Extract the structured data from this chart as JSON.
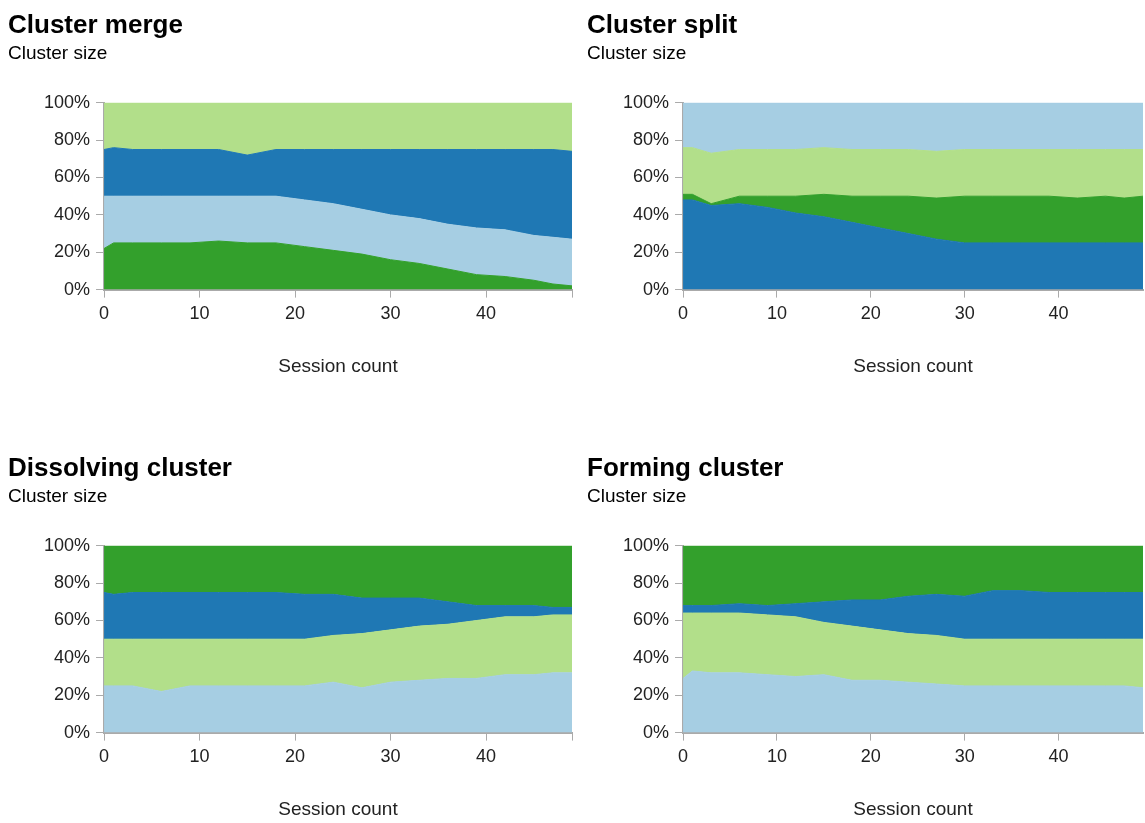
{
  "chart_data": [
    {
      "type": "area",
      "title": "Cluster merge",
      "ylabel": "Cluster size",
      "xlabel": "Session count",
      "stacked": true,
      "xlim": [
        0,
        49
      ],
      "xticks": [
        0,
        10,
        20,
        30,
        40,
        {
          "value": 49,
          "label": null
        }
      ],
      "ylim": [
        0,
        100
      ],
      "yticks": [
        {
          "value": 0,
          "label": "0%"
        },
        {
          "value": 20,
          "label": "20%"
        },
        {
          "value": 40,
          "label": "40%"
        },
        {
          "value": 60,
          "label": "60%"
        },
        {
          "value": 80,
          "label": "80%"
        },
        {
          "value": 100,
          "label": "100%"
        }
      ],
      "x": [
        0,
        1,
        3,
        6,
        9,
        12,
        15,
        18,
        21,
        24,
        27,
        30,
        33,
        36,
        39,
        42,
        45,
        47,
        49
      ],
      "series": [
        {
          "color": "#33a02c",
          "values": [
            22,
            25,
            25,
            25,
            25,
            26,
            25,
            25,
            23,
            21,
            19,
            16,
            14,
            11,
            8,
            7,
            5,
            3,
            2
          ]
        },
        {
          "color": "#a6cee3",
          "values": [
            28,
            25,
            25,
            25,
            25,
            24,
            25,
            25,
            25,
            25,
            24,
            24,
            24,
            24,
            25,
            25,
            24,
            25,
            25
          ]
        },
        {
          "color": "#1f78b4",
          "values": [
            25,
            26,
            25,
            25,
            25,
            25,
            22,
            25,
            27,
            29,
            32,
            35,
            37,
            40,
            42,
            43,
            46,
            47,
            47
          ]
        },
        {
          "color": "#b2df8a",
          "values": [
            25,
            24,
            25,
            25,
            25,
            25,
            28,
            25,
            25,
            25,
            25,
            25,
            25,
            25,
            25,
            25,
            25,
            25,
            26
          ]
        }
      ]
    },
    {
      "type": "area",
      "title": "Cluster split",
      "ylabel": "Cluster size",
      "xlabel": "Session count",
      "stacked": true,
      "xlim": [
        0,
        49
      ],
      "xticks": [
        0,
        10,
        20,
        30,
        40
      ],
      "ylim": [
        0,
        100
      ],
      "yticks": [
        {
          "value": 0,
          "label": "0%"
        },
        {
          "value": 20,
          "label": "20%"
        },
        {
          "value": 40,
          "label": "40%"
        },
        {
          "value": 60,
          "label": "60%"
        },
        {
          "value": 80,
          "label": "80%"
        },
        {
          "value": 100,
          "label": "100%"
        }
      ],
      "x": [
        0,
        1,
        3,
        6,
        9,
        12,
        15,
        18,
        21,
        24,
        27,
        30,
        33,
        36,
        39,
        42,
        45,
        47,
        49
      ],
      "series": [
        {
          "color": "#1f78b4",
          "values": [
            48,
            48,
            45,
            46,
            44,
            41,
            39,
            36,
            33,
            30,
            27,
            25,
            25,
            25,
            25,
            25,
            25,
            25,
            25
          ]
        },
        {
          "color": "#33a02c",
          "values": [
            3,
            3,
            1,
            4,
            6,
            9,
            12,
            14,
            17,
            20,
            22,
            25,
            25,
            25,
            25,
            24,
            25,
            24,
            25
          ]
        },
        {
          "color": "#b2df8a",
          "values": [
            25,
            25,
            27,
            25,
            25,
            25,
            25,
            25,
            25,
            25,
            25,
            25,
            25,
            25,
            25,
            26,
            25,
            26,
            25
          ]
        },
        {
          "color": "#a6cee3",
          "values": [
            24,
            24,
            27,
            25,
            25,
            25,
            24,
            25,
            25,
            25,
            26,
            25,
            25,
            25,
            25,
            25,
            25,
            25,
            25
          ]
        }
      ]
    },
    {
      "type": "area",
      "title": "Dissolving cluster",
      "ylabel": "Cluster size",
      "xlabel": "Session count",
      "stacked": true,
      "xlim": [
        0,
        49
      ],
      "xticks": [
        0,
        10,
        20,
        30,
        40,
        {
          "value": 49,
          "label": null
        }
      ],
      "ylim": [
        0,
        100
      ],
      "yticks": [
        {
          "value": 0,
          "label": "0%"
        },
        {
          "value": 20,
          "label": "20%"
        },
        {
          "value": 40,
          "label": "40%"
        },
        {
          "value": 60,
          "label": "60%"
        },
        {
          "value": 80,
          "label": "80%"
        },
        {
          "value": 100,
          "label": "100%"
        }
      ],
      "x": [
        0,
        1,
        3,
        6,
        9,
        12,
        15,
        18,
        21,
        24,
        27,
        30,
        33,
        36,
        39,
        42,
        45,
        47,
        49
      ],
      "series": [
        {
          "color": "#a6cee3",
          "values": [
            25,
            25,
            25,
            22,
            25,
            25,
            25,
            25,
            25,
            27,
            24,
            27,
            28,
            29,
            29,
            31,
            31,
            32,
            32
          ]
        },
        {
          "color": "#b2df8a",
          "values": [
            25,
            25,
            25,
            28,
            25,
            25,
            25,
            25,
            25,
            25,
            29,
            28,
            29,
            29,
            31,
            31,
            31,
            31,
            31
          ]
        },
        {
          "color": "#1f78b4",
          "values": [
            25,
            24,
            25,
            25,
            25,
            25,
            25,
            25,
            24,
            22,
            19,
            17,
            15,
            12,
            8,
            6,
            6,
            4,
            4
          ]
        },
        {
          "color": "#33a02c",
          "values": [
            25,
            26,
            25,
            25,
            25,
            25,
            25,
            25,
            26,
            26,
            28,
            28,
            28,
            30,
            32,
            32,
            32,
            33,
            33
          ]
        }
      ]
    },
    {
      "type": "area",
      "title": "Forming cluster",
      "ylabel": "Cluster size",
      "xlabel": "Session count",
      "stacked": true,
      "xlim": [
        0,
        49
      ],
      "xticks": [
        0,
        10,
        20,
        30,
        40
      ],
      "ylim": [
        0,
        100
      ],
      "yticks": [
        {
          "value": 0,
          "label": "0%"
        },
        {
          "value": 20,
          "label": "20%"
        },
        {
          "value": 40,
          "label": "40%"
        },
        {
          "value": 60,
          "label": "60%"
        },
        {
          "value": 80,
          "label": "80%"
        },
        {
          "value": 100,
          "label": "100%"
        }
      ],
      "x": [
        0,
        1,
        3,
        6,
        9,
        12,
        15,
        18,
        21,
        24,
        27,
        30,
        33,
        36,
        39,
        42,
        45,
        47,
        49
      ],
      "series": [
        {
          "color": "#a6cee3",
          "values": [
            29,
            33,
            32,
            32,
            31,
            30,
            31,
            28,
            28,
            27,
            26,
            25,
            25,
            25,
            25,
            25,
            25,
            25,
            24
          ]
        },
        {
          "color": "#b2df8a",
          "values": [
            35,
            31,
            32,
            32,
            32,
            32,
            28,
            29,
            27,
            26,
            26,
            25,
            25,
            25,
            25,
            25,
            25,
            25,
            26
          ]
        },
        {
          "color": "#1f78b4",
          "values": [
            4,
            4,
            4,
            5,
            5,
            7,
            11,
            14,
            16,
            20,
            22,
            23,
            26,
            26,
            25,
            25,
            25,
            25,
            25
          ]
        },
        {
          "color": "#33a02c",
          "values": [
            32,
            32,
            32,
            31,
            32,
            31,
            30,
            29,
            29,
            27,
            26,
            27,
            24,
            24,
            25,
            25,
            25,
            25,
            25
          ]
        }
      ]
    }
  ]
}
